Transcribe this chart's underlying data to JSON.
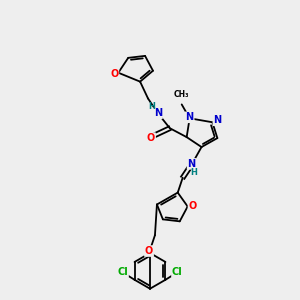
{
  "bg_color": "#eeeeee",
  "atom_colors": {
    "O": "#ff0000",
    "N": "#0000cc",
    "C": "#000000",
    "H": "#008080",
    "Cl": "#00aa00"
  },
  "bond_color": "#000000",
  "bond_lw": 1.3,
  "title": ""
}
